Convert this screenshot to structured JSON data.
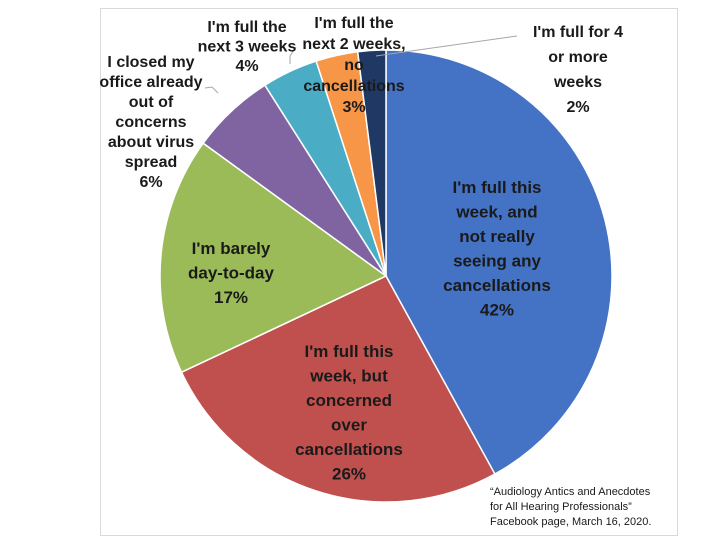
{
  "chart_data": {
    "type": "pie",
    "slices": [
      {
        "label": "I'm full this week, and not really seeing any cancellations",
        "value": 42,
        "value_label": "42%",
        "color": "#4472c4"
      },
      {
        "label": "I'm full this week, but concerned over cancellations",
        "value": 26,
        "value_label": "26%",
        "color": "#c0504d"
      },
      {
        "label": "I'm barely day-to-day",
        "value": 17,
        "value_label": "17%",
        "color": "#9bbb59"
      },
      {
        "label": "I closed my office already out of concerns about virus spread",
        "value": 6,
        "value_label": "6%",
        "color": "#8064a2"
      },
      {
        "label": "I'm full the next 3 weeks",
        "value": 4,
        "value_label": "4%",
        "color": "#4bacc6"
      },
      {
        "label": "I'm full the next 2 weeks, no cancellations",
        "value": 3,
        "value_label": "3%",
        "color": "#f79646"
      },
      {
        "label": "I'm full for 4 or more weeks",
        "value": 2,
        "value_label": "2%",
        "color": "#1f3864"
      }
    ],
    "source_note": "“Audiology Antics and Anecdotes for All Hearing Professionals” Facebook page, March 16, 2020."
  }
}
